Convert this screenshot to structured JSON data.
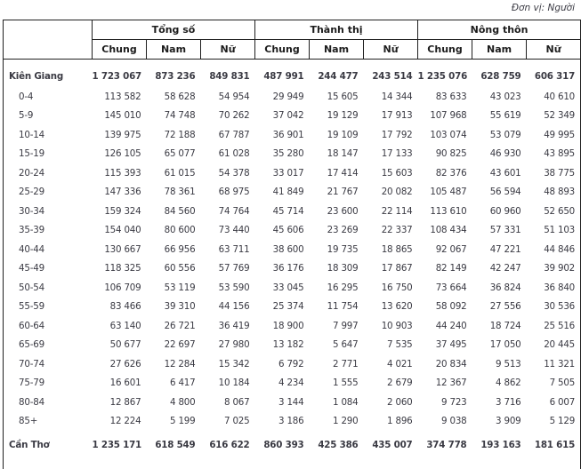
{
  "unit_label": "Đơn vị: Người",
  "colors": {
    "border": "#1f1f1f",
    "body_text": "#3a3a43",
    "header_text": "#1c1c1c"
  },
  "table": {
    "column_groups": [
      {
        "label": "Tổng số"
      },
      {
        "label": "Thành thị"
      },
      {
        "label": "Nông thôn"
      }
    ],
    "sub_headers": [
      "Chung",
      "Nam",
      "Nữ"
    ],
    "rows": [
      {
        "label": "Kiên Giang",
        "type": "province",
        "values": [
          "1 723 067",
          "873 236",
          "849 831",
          "487 991",
          "244 477",
          "243 514",
          "1 235 076",
          "628 759",
          "606 317"
        ]
      },
      {
        "label": "0-4",
        "type": "age",
        "values": [
          "113 582",
          "58 628",
          "54 954",
          "29 949",
          "15 605",
          "14 344",
          "83 633",
          "43 023",
          "40 610"
        ]
      },
      {
        "label": "5-9",
        "type": "age",
        "values": [
          "145 010",
          "74 748",
          "70 262",
          "37 042",
          "19 129",
          "17 913",
          "107 968",
          "55 619",
          "52 349"
        ]
      },
      {
        "label": "10-14",
        "type": "age",
        "values": [
          "139 975",
          "72 188",
          "67 787",
          "36 901",
          "19 109",
          "17 792",
          "103 074",
          "53 079",
          "49 995"
        ]
      },
      {
        "label": "15-19",
        "type": "age",
        "values": [
          "126 105",
          "65 077",
          "61 028",
          "35 280",
          "18 147",
          "17 133",
          "90 825",
          "46 930",
          "43 895"
        ]
      },
      {
        "label": "20-24",
        "type": "age",
        "values": [
          "115 393",
          "61 015",
          "54 378",
          "33 017",
          "17 414",
          "15 603",
          "82 376",
          "43 601",
          "38 775"
        ]
      },
      {
        "label": "25-29",
        "type": "age",
        "values": [
          "147 336",
          "78 361",
          "68 975",
          "41 849",
          "21 767",
          "20 082",
          "105 487",
          "56 594",
          "48 893"
        ]
      },
      {
        "label": "30-34",
        "type": "age",
        "values": [
          "159 324",
          "84 560",
          "74 764",
          "45 714",
          "23 600",
          "22 114",
          "113 610",
          "60 960",
          "52 650"
        ]
      },
      {
        "label": "35-39",
        "type": "age",
        "values": [
          "154 040",
          "80 600",
          "73 440",
          "45 606",
          "23 269",
          "22 337",
          "108 434",
          "57 331",
          "51 103"
        ]
      },
      {
        "label": "40-44",
        "type": "age",
        "values": [
          "130 667",
          "66 956",
          "63 711",
          "38 600",
          "19 735",
          "18 865",
          "92 067",
          "47 221",
          "44 846"
        ]
      },
      {
        "label": "45-49",
        "type": "age",
        "values": [
          "118 325",
          "60 556",
          "57 769",
          "36 176",
          "18 309",
          "17 867",
          "82 149",
          "42 247",
          "39 902"
        ]
      },
      {
        "label": "50-54",
        "type": "age",
        "values": [
          "106 709",
          "53 119",
          "53 590",
          "33 045",
          "16 295",
          "16 750",
          "73 664",
          "36 824",
          "36 840"
        ]
      },
      {
        "label": "55-59",
        "type": "age",
        "values": [
          "83 466",
          "39 310",
          "44 156",
          "25 374",
          "11 754",
          "13 620",
          "58 092",
          "27 556",
          "30 536"
        ]
      },
      {
        "label": "60-64",
        "type": "age",
        "values": [
          "63 140",
          "26 721",
          "36 419",
          "18 900",
          "7 997",
          "10 903",
          "44 240",
          "18 724",
          "25 516"
        ]
      },
      {
        "label": "65-69",
        "type": "age",
        "values": [
          "50 677",
          "22 697",
          "27 980",
          "13 182",
          "5 647",
          "7 535",
          "37 495",
          "17 050",
          "20 445"
        ]
      },
      {
        "label": "70-74",
        "type": "age",
        "values": [
          "27 626",
          "12 284",
          "15 342",
          "6 792",
          "2 771",
          "4 021",
          "20 834",
          "9 513",
          "11 321"
        ]
      },
      {
        "label": "75-79",
        "type": "age",
        "values": [
          "16 601",
          "6 417",
          "10 184",
          "4 234",
          "1 555",
          "2 679",
          "12 367",
          "4 862",
          "7 505"
        ]
      },
      {
        "label": "80-84",
        "type": "age",
        "values": [
          "12 867",
          "4 800",
          "8 067",
          "3 144",
          "1 084",
          "2 060",
          "9 723",
          "3 716",
          "6 007"
        ]
      },
      {
        "label": "85+",
        "type": "age",
        "values": [
          "12 224",
          "5 199",
          "7 025",
          "3 186",
          "1 290",
          "1 896",
          "9 038",
          "3 909",
          "5 129"
        ]
      },
      {
        "label": "Cần Thơ",
        "type": "province",
        "partial": true,
        "values": [
          "1 235 171",
          "618 549",
          "616 622",
          "860 393",
          "425 386",
          "435 007",
          "374 778",
          "193 163",
          "181 615"
        ]
      }
    ]
  }
}
